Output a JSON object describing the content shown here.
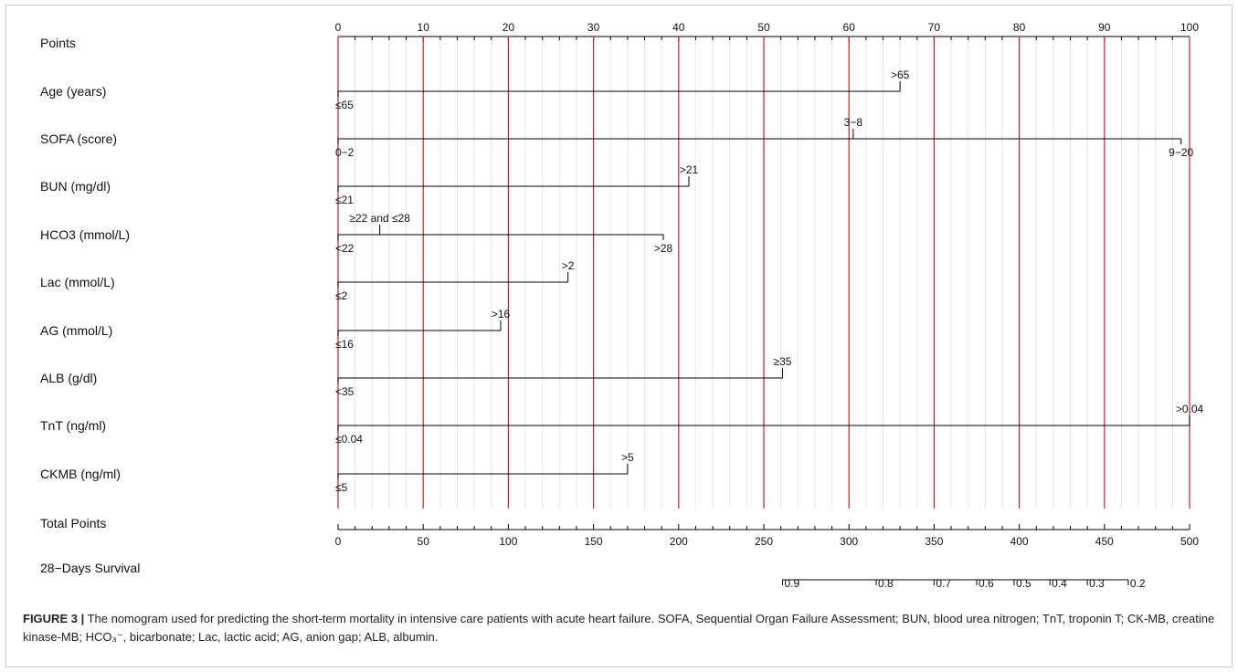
{
  "chart_data": {
    "type": "nomogram",
    "points_axis": {
      "label": "Points",
      "min": 0,
      "max": 100,
      "ticks": [
        0,
        10,
        20,
        30,
        40,
        50,
        60,
        70,
        80,
        90,
        100
      ]
    },
    "total_points_axis": {
      "label": "Total Points",
      "min": 0,
      "max": 500,
      "ticks": [
        0,
        50,
        100,
        150,
        200,
        250,
        300,
        350,
        400,
        450,
        500
      ]
    },
    "survival_axis": {
      "label": "28−Days Survival",
      "ticks": [
        {
          "label": "0.9",
          "total": 261
        },
        {
          "label": "0.8",
          "total": 316
        },
        {
          "label": "0.7",
          "total": 350
        },
        {
          "label": "0.6",
          "total": 375
        },
        {
          "label": "0.5",
          "total": 397
        },
        {
          "label": "0.4",
          "total": 418
        },
        {
          "label": "0.3",
          "total": 440
        },
        {
          "label": "0.2",
          "total": 464
        }
      ]
    },
    "reference_lines": {
      "color": "#d11f1f",
      "points": [
        0,
        10,
        20,
        30,
        40,
        50,
        60,
        70,
        80,
        90,
        100
      ]
    },
    "variables": [
      {
        "label": "Age (years)",
        "max_points": 66,
        "levels": [
          {
            "label": "≤65",
            "points": 0,
            "side": "below"
          },
          {
            "label": ">65",
            "points": 66,
            "side": "above"
          }
        ]
      },
      {
        "label": "SOFA (score)",
        "max_points": 99,
        "levels": [
          {
            "label": "0−2",
            "points": 0,
            "side": "below"
          },
          {
            "label": "3−8",
            "points": 60.5,
            "side": "above"
          },
          {
            "label": "9−20",
            "points": 99,
            "side": "below"
          }
        ]
      },
      {
        "label": "BUN (mg/dl)",
        "max_points": 41.2,
        "levels": [
          {
            "label": "≤21",
            "points": 0,
            "side": "below"
          },
          {
            "label": ">21",
            "points": 41.2,
            "side": "above"
          }
        ]
      },
      {
        "label": "HCO3 (mmol/L)",
        "max_points": 38.2,
        "levels": [
          {
            "label": "<22",
            "points": 0,
            "side": "below"
          },
          {
            "label": "≥22 and ≤28",
            "points": 4.9,
            "side": "above"
          },
          {
            "label": ">28",
            "points": 38.2,
            "side": "below"
          }
        ]
      },
      {
        "label": "Lac (mmol/L)",
        "max_points": 27,
        "levels": [
          {
            "label": "≤2",
            "points": 0,
            "side": "below"
          },
          {
            "label": ">2",
            "points": 27,
            "side": "above"
          }
        ]
      },
      {
        "label": "AG (mmol/L)",
        "max_points": 19.1,
        "levels": [
          {
            "label": "≤16",
            "points": 0,
            "side": "below"
          },
          {
            "label": ">16",
            "points": 19.1,
            "side": "above"
          }
        ]
      },
      {
        "label": "ALB (g/dl)",
        "max_points": 52.2,
        "levels": [
          {
            "label": "<35",
            "points": 0,
            "side": "below"
          },
          {
            "label": "≥35",
            "points": 52.2,
            "side": "above"
          }
        ]
      },
      {
        "label": "TnT (ng/ml)",
        "max_points": 100,
        "levels": [
          {
            "label": "≤0.04",
            "points": 0,
            "side": "below"
          },
          {
            "label": ">0.04",
            "points": 100,
            "side": "above"
          }
        ]
      },
      {
        "label": "CKMB (ng/ml)",
        "max_points": 34,
        "levels": [
          {
            "label": "≤5",
            "points": 0,
            "side": "below"
          },
          {
            "label": ">5",
            "points": 34,
            "side": "above"
          }
        ]
      }
    ]
  },
  "caption": {
    "lead": "FIGURE 3 |",
    "text": " The nomogram used for predicting the short-term mortality in intensive care patients with acute heart failure. SOFA, Sequential Organ Failure Assessment; BUN, blood urea nitrogen; TnT, troponin T; CK-MB, creatine kinase-MB; HCO₃⁻, bicarbonate; Lac, lactic acid; AG, anion gap; ALB, albumin."
  }
}
